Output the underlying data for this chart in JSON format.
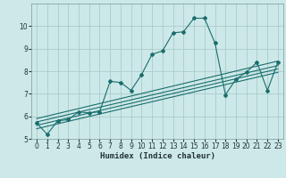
{
  "title": "",
  "xlabel": "Humidex (Indice chaleur)",
  "background_color": "#cde8e8",
  "grid_color": "#aacccc",
  "line_color": "#1a6e6e",
  "xlim": [
    -0.5,
    23.5
  ],
  "ylim": [
    5,
    11
  ],
  "yticks": [
    5,
    6,
    7,
    8,
    9,
    10
  ],
  "xticks": [
    0,
    1,
    2,
    3,
    4,
    5,
    6,
    7,
    8,
    9,
    10,
    11,
    12,
    13,
    14,
    15,
    16,
    17,
    18,
    19,
    20,
    21,
    22,
    23
  ],
  "main_x": [
    0,
    1,
    2,
    3,
    4,
    5,
    6,
    7,
    8,
    9,
    10,
    11,
    12,
    13,
    14,
    15,
    16,
    17,
    18,
    19,
    20,
    21,
    22,
    23
  ],
  "main_y": [
    5.7,
    5.2,
    5.8,
    5.85,
    6.2,
    6.15,
    6.2,
    7.55,
    7.5,
    7.15,
    7.85,
    8.75,
    8.9,
    9.7,
    9.75,
    10.35,
    10.35,
    9.25,
    6.95,
    7.65,
    7.95,
    8.4,
    7.15,
    8.4
  ],
  "smooth_lines": [
    {
      "x": [
        0,
        23
      ],
      "y": [
        5.9,
        8.45
      ]
    },
    {
      "x": [
        0,
        23
      ],
      "y": [
        5.75,
        8.25
      ]
    },
    {
      "x": [
        0,
        23
      ],
      "y": [
        5.6,
        8.1
      ]
    },
    {
      "x": [
        0,
        23
      ],
      "y": [
        5.45,
        7.95
      ]
    }
  ]
}
